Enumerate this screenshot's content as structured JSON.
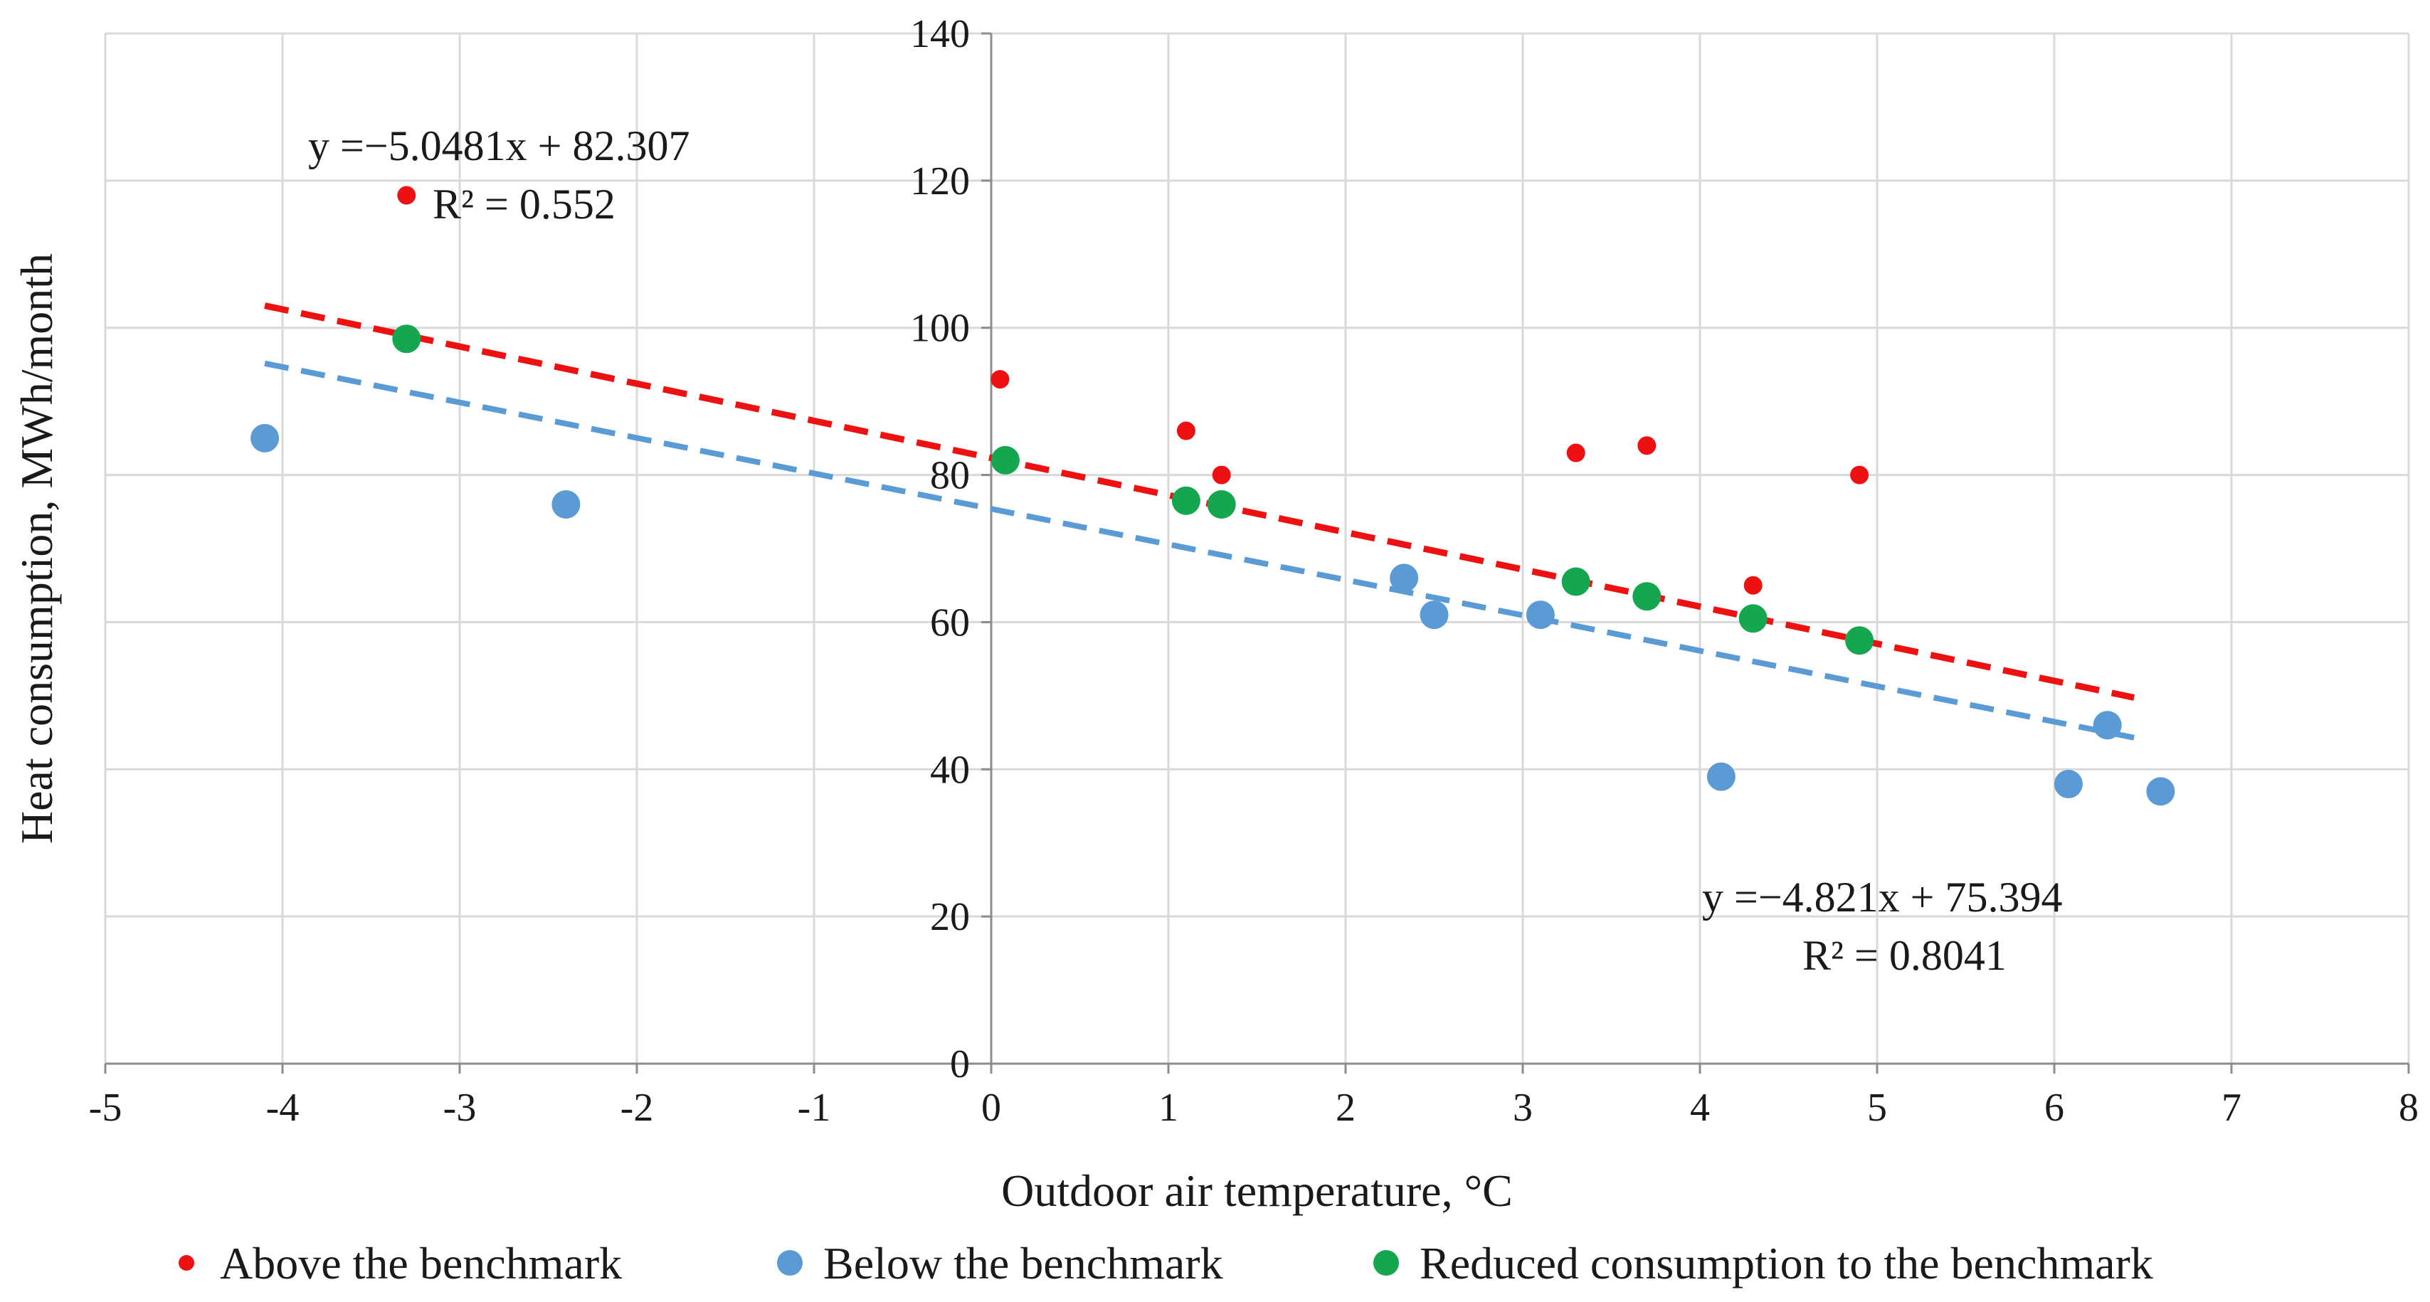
{
  "chart_data": {
    "type": "scatter",
    "xlabel": "Outdoor air temperature, °C",
    "ylabel": "Heat consumption, MWh/month",
    "xlim": [
      -5,
      8
    ],
    "ylim": [
      0,
      140
    ],
    "x_ticks": [
      -5,
      -4,
      -3,
      -2,
      -1,
      0,
      1,
      2,
      3,
      4,
      5,
      6,
      7,
      8
    ],
    "y_ticks": [
      0,
      20,
      40,
      60,
      80,
      100,
      120,
      140
    ],
    "x_tick_labels": [
      "-5",
      "-4",
      "-3",
      "-2",
      "-1",
      "0",
      "1",
      "2",
      "3",
      "4",
      "5",
      "6",
      "7",
      "8"
    ],
    "y_tick_labels": [
      "0",
      "20",
      "40",
      "60",
      "80",
      "100",
      "120",
      "140"
    ],
    "grid": true,
    "legend_position": "bottom",
    "series": [
      {
        "name": "Above the benchmark",
        "color": "#ee1111",
        "marker": "small-dot",
        "points": [
          {
            "x": -3.3,
            "y": 118
          },
          {
            "x": 0.05,
            "y": 93
          },
          {
            "x": 1.1,
            "y": 86
          },
          {
            "x": 1.3,
            "y": 80
          },
          {
            "x": 3.3,
            "y": 83
          },
          {
            "x": 3.7,
            "y": 84
          },
          {
            "x": 4.3,
            "y": 65
          },
          {
            "x": 4.9,
            "y": 80
          }
        ]
      },
      {
        "name": "Below the benchmark",
        "color": "#5b9bd5",
        "marker": "large-dot",
        "points": [
          {
            "x": -4.1,
            "y": 85
          },
          {
            "x": -2.4,
            "y": 76
          },
          {
            "x": 2.33,
            "y": 66
          },
          {
            "x": 2.5,
            "y": 61
          },
          {
            "x": 3.1,
            "y": 61
          },
          {
            "x": 4.12,
            "y": 39
          },
          {
            "x": 6.08,
            "y": 38
          },
          {
            "x": 6.3,
            "y": 46
          },
          {
            "x": 6.6,
            "y": 37
          }
        ]
      },
      {
        "name": "Reduced consumption to the benchmark",
        "color": "#14a750",
        "marker": "large-dot",
        "points": [
          {
            "x": -3.3,
            "y": 98.5
          },
          {
            "x": 0.08,
            "y": 82
          },
          {
            "x": 1.1,
            "y": 76.5
          },
          {
            "x": 1.3,
            "y": 76
          },
          {
            "x": 3.3,
            "y": 65.5
          },
          {
            "x": 3.7,
            "y": 63.5
          },
          {
            "x": 4.3,
            "y": 60.5
          },
          {
            "x": 4.9,
            "y": 57.5
          }
        ]
      }
    ],
    "trendlines": [
      {
        "series": "Above the benchmark",
        "color": "#ee1111",
        "style": "dashed",
        "slope": -5.0481,
        "intercept": 82.307,
        "x_range": [
          -4.1,
          6.45
        ],
        "equation": "y =−5.0481x + 82.307",
        "r_squared": "R² = 0.552"
      },
      {
        "series": "Below the benchmark",
        "color": "#5b9bd5",
        "style": "dashed",
        "slope": -4.821,
        "intercept": 75.394,
        "x_range": [
          -4.1,
          6.45
        ],
        "equation": "y =−4.821x + 75.394",
        "r_squared": "R² = 0.8041"
      }
    ]
  }
}
